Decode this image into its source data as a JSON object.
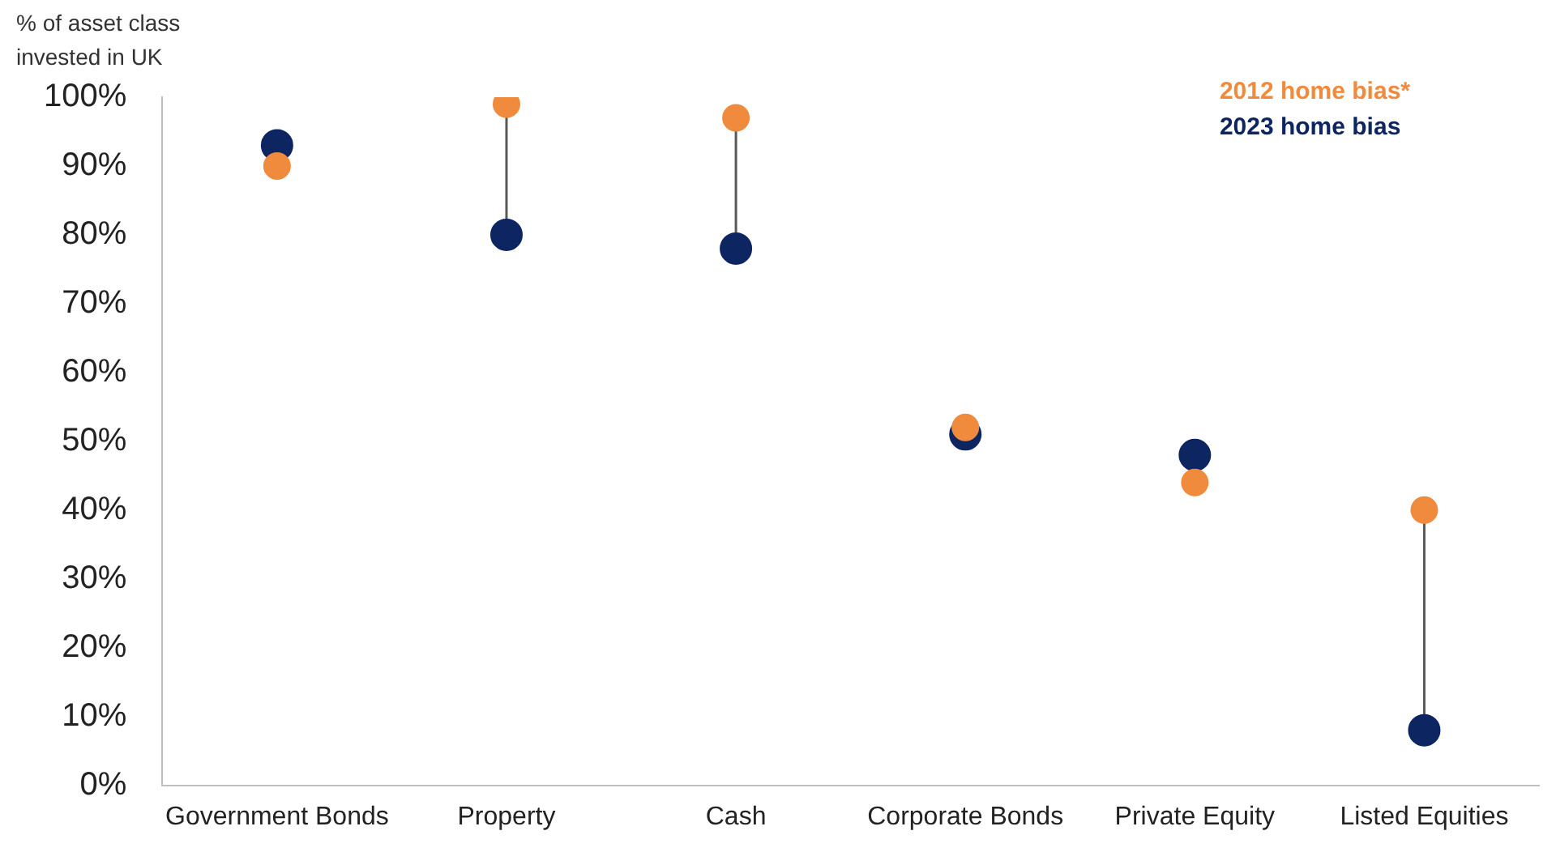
{
  "chart_data": {
    "type": "scatter",
    "ylabel": "% of asset class invested in UK",
    "categories": [
      "Government Bonds",
      "Property",
      "Cash",
      "Corporate Bonds",
      "Private Equity",
      "Listed Equities"
    ],
    "series": [
      {
        "name": "2012 home bias*",
        "color": "#f08a3c",
        "values": [
          90,
          99,
          97,
          52,
          44,
          40
        ]
      },
      {
        "name": "2023 home bias",
        "color": "#0d2560",
        "values": [
          93,
          80,
          78,
          51,
          48,
          8
        ]
      }
    ],
    "ylim": [
      0,
      100
    ],
    "yticks": [
      {
        "value": 0,
        "label": "0%"
      },
      {
        "value": 10,
        "label": "10%"
      },
      {
        "value": 20,
        "label": "20%"
      },
      {
        "value": 30,
        "label": "30%"
      },
      {
        "value": 40,
        "label": "40%"
      },
      {
        "value": 50,
        "label": "50%"
      },
      {
        "value": 60,
        "label": "60%"
      },
      {
        "value": 70,
        "label": "70%"
      },
      {
        "value": 80,
        "label": "80%"
      },
      {
        "value": 90,
        "label": "90%"
      },
      {
        "value": 100,
        "label": "100%"
      }
    ],
    "grid": false,
    "legend": "top right",
    "marker": "circle"
  }
}
